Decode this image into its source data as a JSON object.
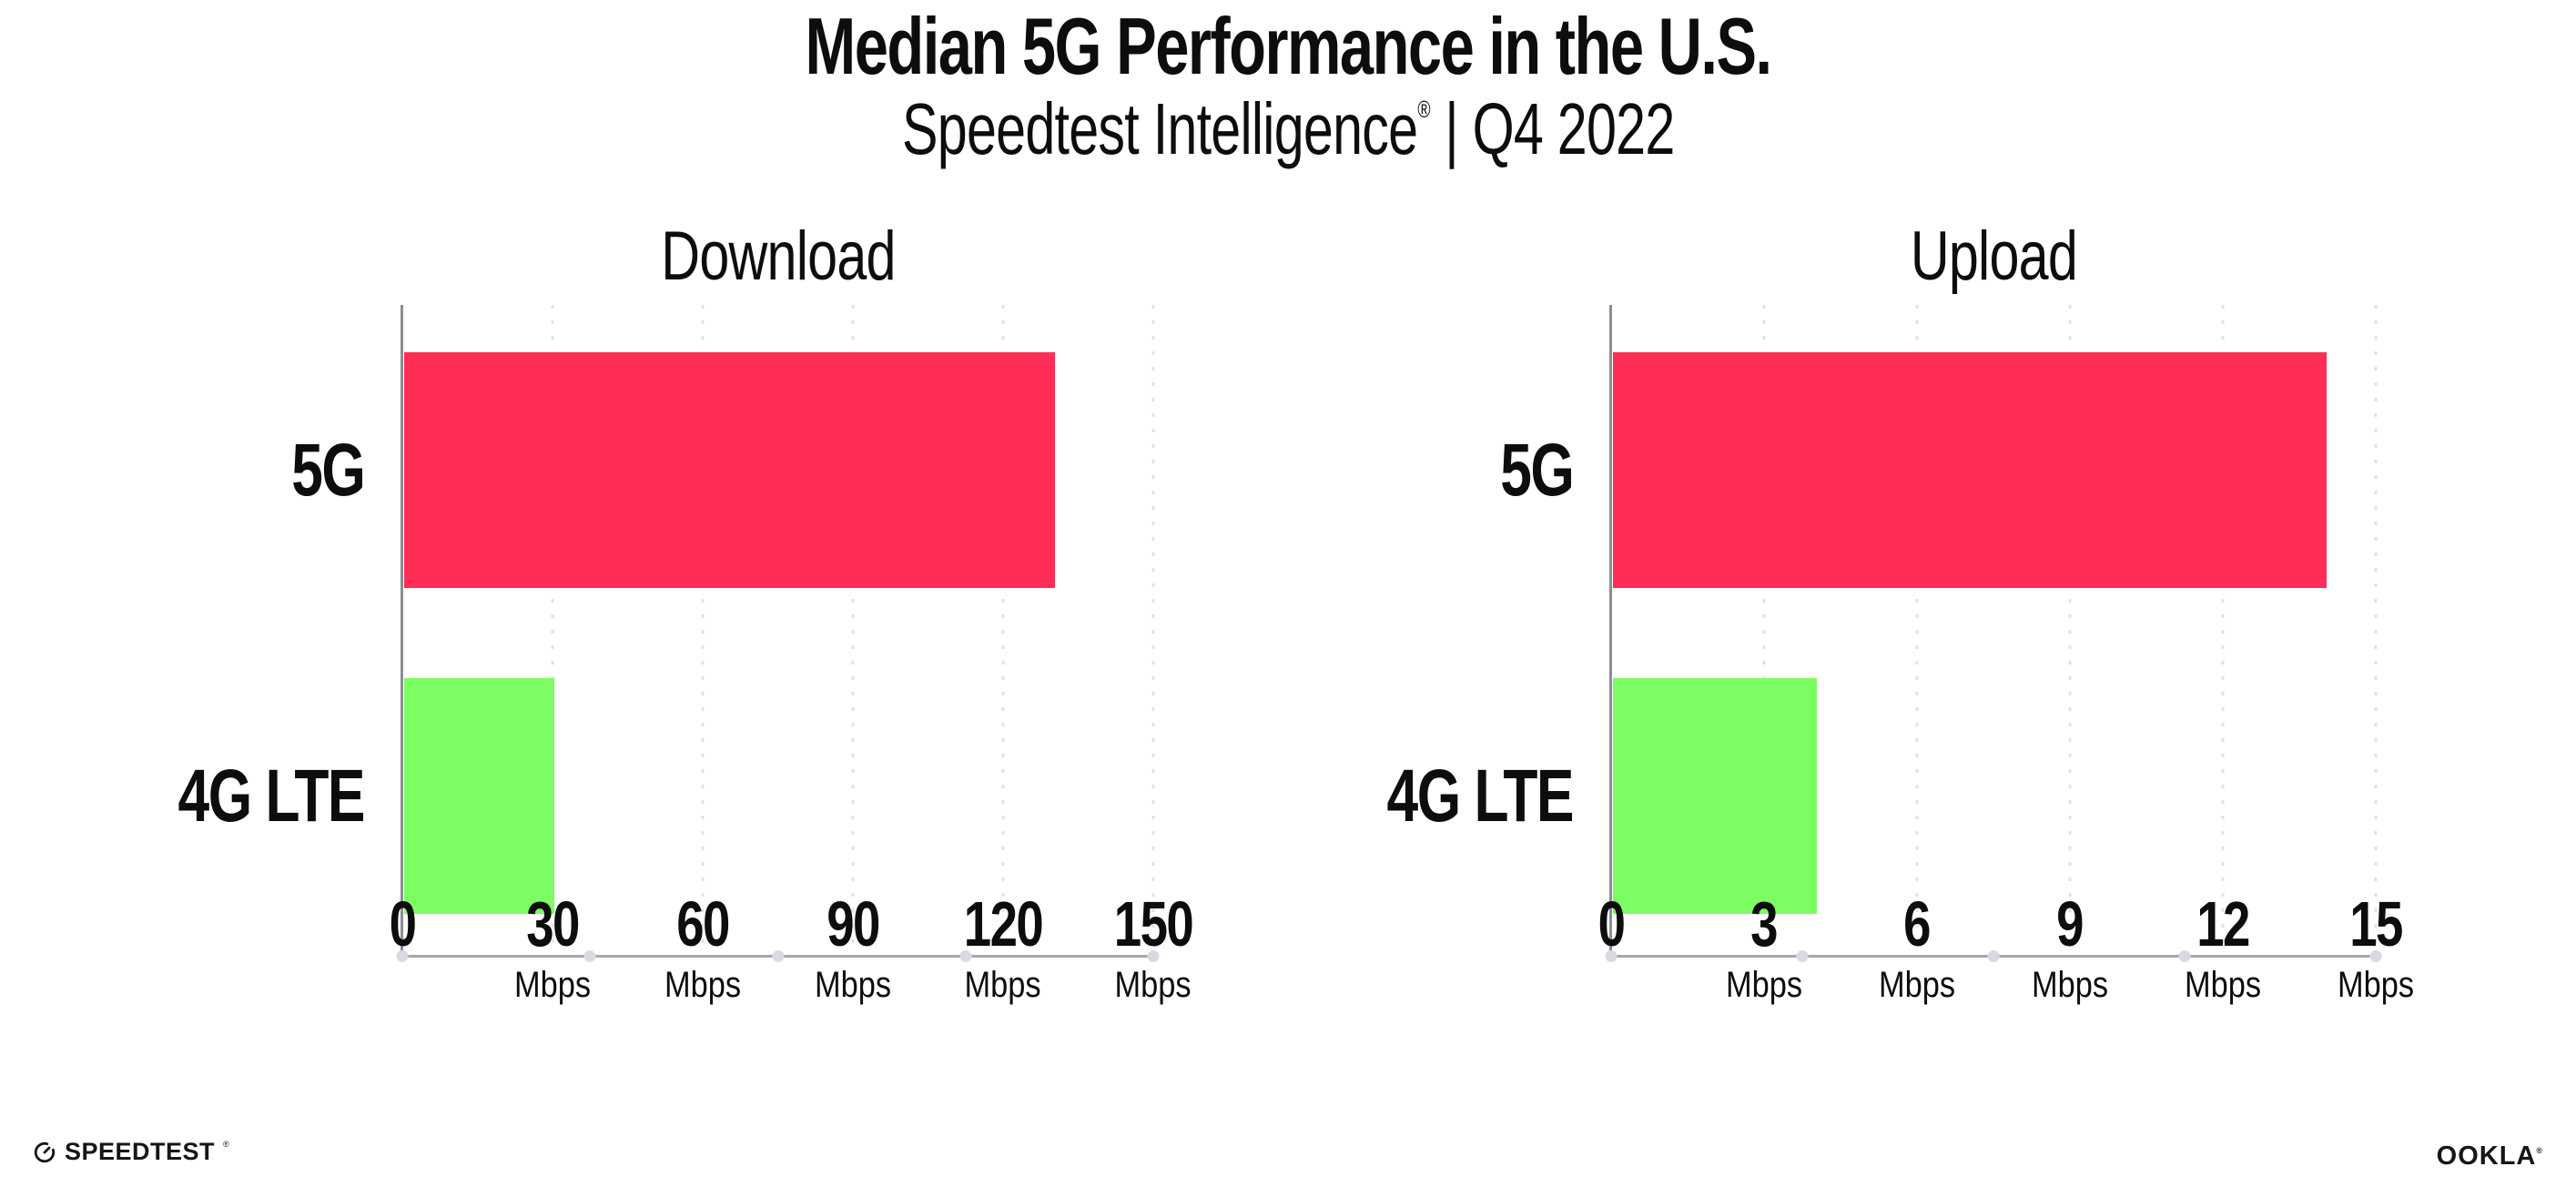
{
  "header": {
    "title": "Median 5G Performance in the U.S.",
    "subtitle_brand": "Speedtest Intelligence",
    "subtitle_reg": "®",
    "subtitle_rest": " | Q4 2022"
  },
  "chart_data": [
    {
      "type": "bar",
      "orientation": "horizontal",
      "title": "Download",
      "categories": [
        "5G",
        "4G LTE"
      ],
      "values": [
        130,
        30
      ],
      "unit": "Mbps",
      "xlim": [
        0,
        150
      ],
      "xticks": [
        0,
        30,
        60,
        90,
        120,
        150
      ],
      "bar_colors": [
        "#FF2E56",
        "#7DFD64"
      ],
      "grid": "dotted-vertical",
      "legend": "none"
    },
    {
      "type": "bar",
      "orientation": "horizontal",
      "title": "Upload",
      "categories": [
        "5G",
        "4G LTE"
      ],
      "values": [
        14,
        4
      ],
      "unit": "Mbps",
      "xlim": [
        0,
        15
      ],
      "xticks": [
        0,
        3,
        6,
        9,
        12,
        15
      ],
      "bar_colors": [
        "#FF2E56",
        "#7DFD64"
      ],
      "grid": "dotted-vertical",
      "legend": "none"
    }
  ],
  "colors": {
    "bar_5g": "#FF2E56",
    "bar_4g_lte": "#7DFD64",
    "axis": "#a7a7ad",
    "gridline": "#e1e1e9",
    "text": "#0d0d0d"
  },
  "footer": {
    "speedtest_label": "SPEEDTEST",
    "speedtest_mark": "®",
    "ookla_label": "OOKLA",
    "ookla_mark": "®"
  }
}
